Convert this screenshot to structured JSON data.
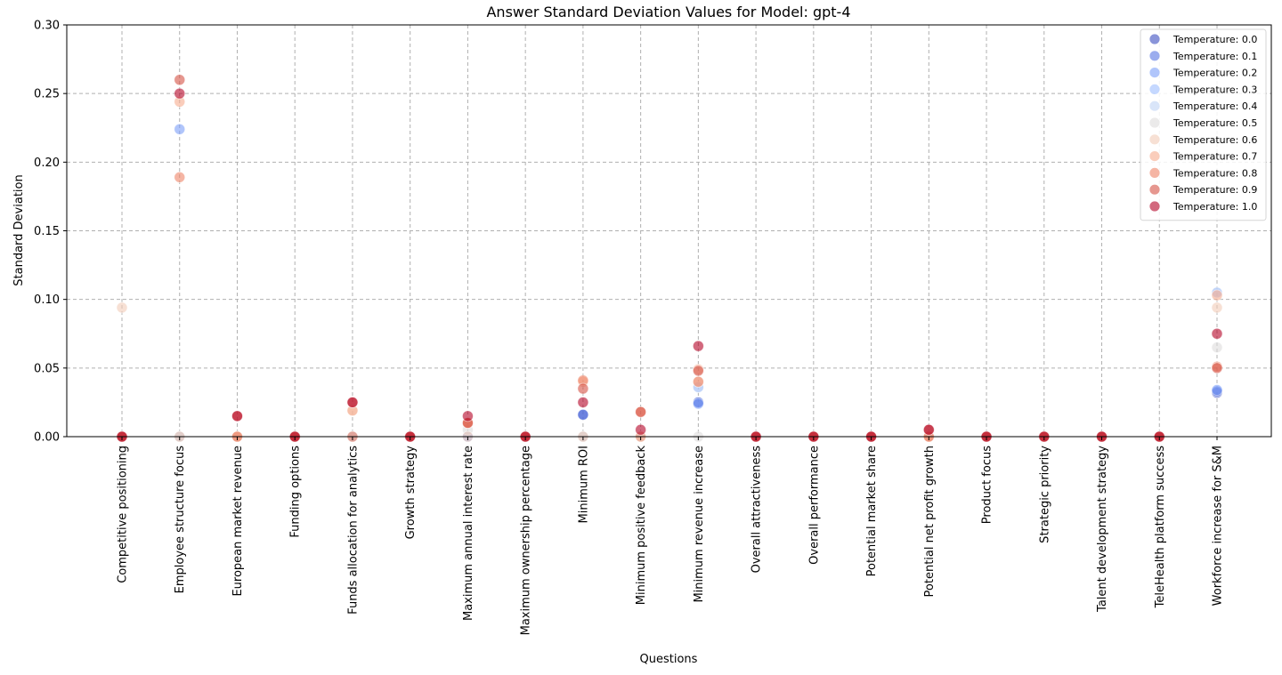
{
  "chart_data": {
    "type": "scatter",
    "title": "Answer Standard Deviation Values for Model: gpt-4",
    "xlabel": "Questions",
    "ylabel": "Standard Deviation",
    "ylim": [
      0,
      0.3
    ],
    "yticks": [
      "0.00",
      "0.05",
      "0.10",
      "0.15",
      "0.20",
      "0.25",
      "0.30"
    ],
    "grid": true,
    "legend_position": "top-right",
    "categories": [
      "Competitive positioning",
      "Employee structure focus",
      "European market revenue",
      "Funding options",
      "Funds allocation for analytics",
      "Growth strategy",
      "Maximum annual interest rate",
      "Maximum ownership percentage",
      "Minimum ROI",
      "Minimum positive feedback",
      "Minimum revenue increase",
      "Overall attractiveness",
      "Overall performance",
      "Potential market share",
      "Potential net profit growth",
      "Product focus",
      "Strategic priority",
      "Talent development strategy",
      "TeleHealth platform success",
      "Workforce increase for S&M"
    ],
    "series": [
      {
        "name": "Temperature: 0.0",
        "color": "#3b4cc0",
        "values": [
          0,
          0,
          0,
          0,
          0,
          0,
          0,
          0,
          0.016,
          0,
          0.025,
          0,
          0,
          0,
          0,
          0,
          0,
          0,
          0,
          0.032
        ]
      },
      {
        "name": "Temperature: 0.1",
        "color": "#5977e3",
        "values": [
          0,
          0,
          0,
          0,
          0,
          0,
          0,
          0,
          0.016,
          0,
          0.025,
          0,
          0,
          0,
          0,
          0,
          0,
          0,
          0,
          0.033
        ]
      },
      {
        "name": "Temperature: 0.2",
        "color": "#7b9ff9",
        "values": [
          0,
          0.224,
          0,
          0,
          0,
          0,
          0,
          0,
          0,
          0,
          0.024,
          0,
          0,
          0,
          0,
          0,
          0,
          0,
          0,
          0.034
        ]
      },
      {
        "name": "Temperature: 0.3",
        "color": "#9ebeff",
        "values": [
          0,
          0,
          0,
          0,
          0,
          0,
          0,
          0,
          0,
          0,
          0.036,
          0,
          0,
          0,
          0,
          0,
          0,
          0,
          0,
          0.105
        ]
      },
      {
        "name": "Temperature: 0.4",
        "color": "#c0d4f5",
        "values": [
          0,
          0,
          0,
          0,
          0,
          0,
          0,
          0,
          0,
          0,
          0.036,
          0,
          0,
          0,
          0,
          0,
          0,
          0,
          0,
          0.105
        ]
      },
      {
        "name": "Temperature: 0.5",
        "color": "#dddcdc",
        "values": [
          0,
          0,
          0,
          0,
          0,
          0,
          0.005,
          0,
          0,
          0,
          0,
          0,
          0,
          0,
          0,
          0,
          0,
          0,
          0,
          0.065
        ]
      },
      {
        "name": "Temperature: 0.6",
        "color": "#f2cbb7",
        "values": [
          0.094,
          0,
          0,
          0,
          0.019,
          0,
          0,
          0,
          0,
          0,
          0.04,
          0,
          0,
          0,
          0,
          0,
          0,
          0,
          0,
          0.094
        ]
      },
      {
        "name": "Temperature: 0.7",
        "color": "#f7ac8e",
        "values": [
          0,
          0.244,
          0,
          0,
          0.019,
          0,
          0.01,
          0,
          0.04,
          0,
          0.049,
          0,
          0,
          0,
          0,
          0,
          0,
          0,
          0,
          0.103
        ]
      },
      {
        "name": "Temperature: 0.8",
        "color": "#ee8468",
        "values": [
          0,
          0.189,
          0,
          0,
          0,
          0,
          0.01,
          0,
          0.041,
          0.018,
          0.04,
          0,
          0,
          0,
          0,
          0,
          0,
          0,
          0,
          0.051
        ]
      },
      {
        "name": "Temperature: 0.9",
        "color": "#d65244",
        "values": [
          0,
          0.26,
          0.015,
          0,
          0.025,
          0,
          0.01,
          0,
          0.035,
          0.018,
          0.048,
          0,
          0,
          0,
          0.005,
          0,
          0,
          0,
          0,
          0.05
        ]
      },
      {
        "name": "Temperature: 1.0",
        "color": "#b40426",
        "values": [
          0,
          0.25,
          0.015,
          0,
          0.025,
          0,
          0.015,
          0,
          0.025,
          0.005,
          0.066,
          0,
          0,
          0,
          0.005,
          0,
          0,
          0,
          0,
          0.075
        ]
      }
    ]
  }
}
